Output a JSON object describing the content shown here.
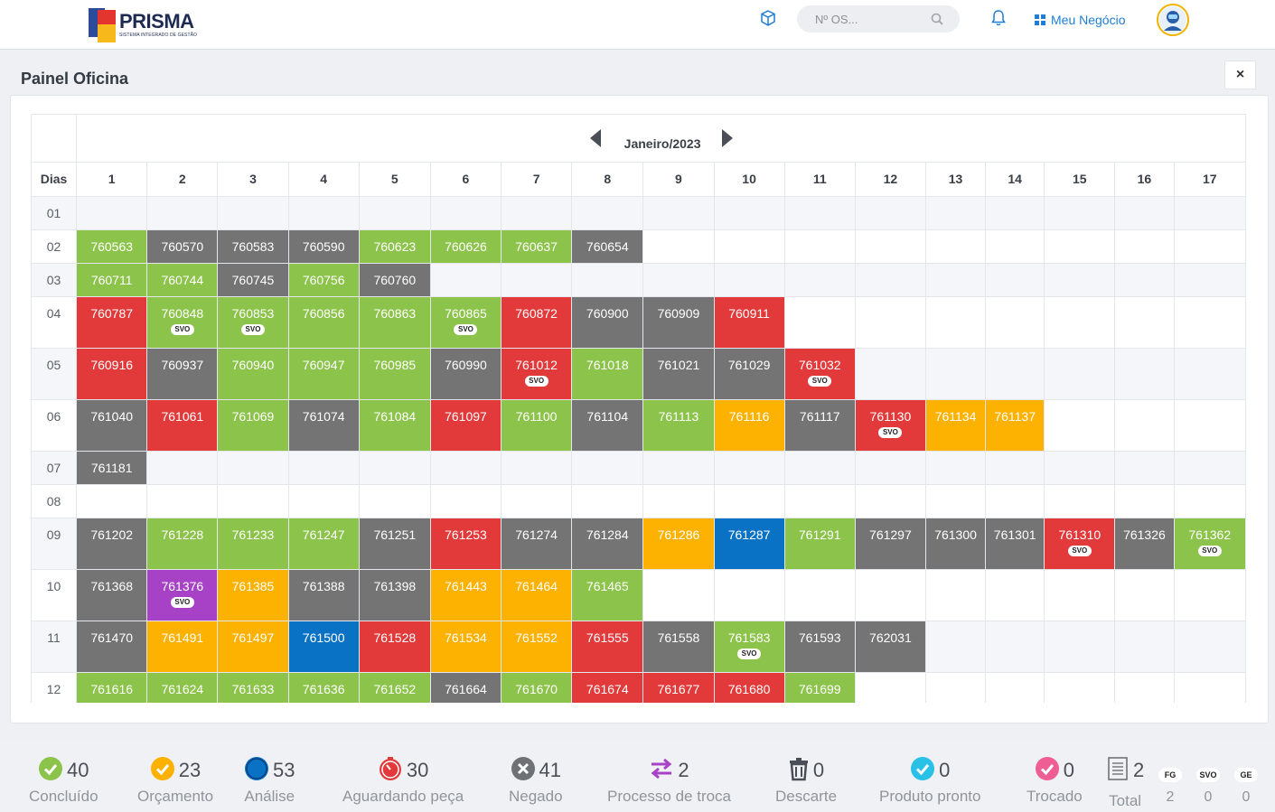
{
  "header": {
    "brand": "PRISMA",
    "tagline": "SISTEMA INTEGRADO DE GESTÃO",
    "search_placeholder": "Nº OS...",
    "business_link": "Meu Negócio",
    "accent_color": "#1f7dd6"
  },
  "panel": {
    "title": "Painel Oficina",
    "close_label": "×",
    "month_label": "Janeiro/2023",
    "days_header": "Dias",
    "columns": [
      "1",
      "2",
      "3",
      "4",
      "5",
      "6",
      "7",
      "8",
      "9",
      "10",
      "11",
      "12",
      "13",
      "14",
      "15",
      "16",
      "17"
    ]
  },
  "colors": {
    "green": "#8cc34a",
    "gray": "#747474",
    "red": "#e23a3a",
    "orange": "#fdb100",
    "blue": "#0a72c5",
    "purple": "#a742c6"
  },
  "rows": [
    {
      "day": "01",
      "cells": []
    },
    {
      "day": "02",
      "cells": [
        {
          "os": "760563",
          "c": "green"
        },
        {
          "os": "760570",
          "c": "gray"
        },
        {
          "os": "760583",
          "c": "gray"
        },
        {
          "os": "760590",
          "c": "gray"
        },
        {
          "os": "760623",
          "c": "green"
        },
        {
          "os": "760626",
          "c": "green"
        },
        {
          "os": "760637",
          "c": "green"
        },
        {
          "os": "760654",
          "c": "gray"
        }
      ]
    },
    {
      "day": "03",
      "cells": [
        {
          "os": "760711",
          "c": "green"
        },
        {
          "os": "760744",
          "c": "green"
        },
        {
          "os": "760745",
          "c": "gray"
        },
        {
          "os": "760756",
          "c": "green"
        },
        {
          "os": "760760",
          "c": "gray"
        }
      ]
    },
    {
      "day": "04",
      "cells": [
        {
          "os": "760787",
          "c": "red"
        },
        {
          "os": "760848",
          "c": "green",
          "svo": true
        },
        {
          "os": "760853",
          "c": "green",
          "svo": true
        },
        {
          "os": "760856",
          "c": "green"
        },
        {
          "os": "760863",
          "c": "green"
        },
        {
          "os": "760865",
          "c": "green",
          "svo": true
        },
        {
          "os": "760872",
          "c": "red"
        },
        {
          "os": "760900",
          "c": "gray"
        },
        {
          "os": "760909",
          "c": "gray"
        },
        {
          "os": "760911",
          "c": "red"
        }
      ]
    },
    {
      "day": "05",
      "cells": [
        {
          "os": "760916",
          "c": "red"
        },
        {
          "os": "760937",
          "c": "gray"
        },
        {
          "os": "760940",
          "c": "green"
        },
        {
          "os": "760947",
          "c": "green"
        },
        {
          "os": "760985",
          "c": "green"
        },
        {
          "os": "760990",
          "c": "gray"
        },
        {
          "os": "761012",
          "c": "red",
          "svo": true
        },
        {
          "os": "761018",
          "c": "green"
        },
        {
          "os": "761021",
          "c": "gray"
        },
        {
          "os": "761029",
          "c": "gray"
        },
        {
          "os": "761032",
          "c": "red",
          "svo": true
        }
      ]
    },
    {
      "day": "06",
      "cells": [
        {
          "os": "761040",
          "c": "gray"
        },
        {
          "os": "761061",
          "c": "red"
        },
        {
          "os": "761069",
          "c": "green"
        },
        {
          "os": "761074",
          "c": "gray"
        },
        {
          "os": "761084",
          "c": "green"
        },
        {
          "os": "761097",
          "c": "red"
        },
        {
          "os": "761100",
          "c": "green"
        },
        {
          "os": "761104",
          "c": "gray"
        },
        {
          "os": "761113",
          "c": "green"
        },
        {
          "os": "761116",
          "c": "orange"
        },
        {
          "os": "761117",
          "c": "gray"
        },
        {
          "os": "761130",
          "c": "red",
          "svo": true
        },
        {
          "os": "761134",
          "c": "orange"
        },
        {
          "os": "761137",
          "c": "orange"
        }
      ]
    },
    {
      "day": "07",
      "cells": [
        {
          "os": "761181",
          "c": "gray"
        }
      ]
    },
    {
      "day": "08",
      "cells": []
    },
    {
      "day": "09",
      "cells": [
        {
          "os": "761202",
          "c": "gray"
        },
        {
          "os": "761228",
          "c": "green"
        },
        {
          "os": "761233",
          "c": "green"
        },
        {
          "os": "761247",
          "c": "green"
        },
        {
          "os": "761251",
          "c": "gray"
        },
        {
          "os": "761253",
          "c": "red"
        },
        {
          "os": "761274",
          "c": "gray"
        },
        {
          "os": "761284",
          "c": "gray"
        },
        {
          "os": "761286",
          "c": "orange"
        },
        {
          "os": "761287",
          "c": "blue"
        },
        {
          "os": "761291",
          "c": "green"
        },
        {
          "os": "761297",
          "c": "gray"
        },
        {
          "os": "761300",
          "c": "gray"
        },
        {
          "os": "761301",
          "c": "gray"
        },
        {
          "os": "761310",
          "c": "red",
          "svo": true
        },
        {
          "os": "761326",
          "c": "gray"
        },
        {
          "os": "761362",
          "c": "green",
          "svo": true
        }
      ]
    },
    {
      "day": "10",
      "cells": [
        {
          "os": "761368",
          "c": "gray"
        },
        {
          "os": "761376",
          "c": "purple",
          "svo": true
        },
        {
          "os": "761385",
          "c": "orange"
        },
        {
          "os": "761388",
          "c": "gray"
        },
        {
          "os": "761398",
          "c": "gray"
        },
        {
          "os": "761443",
          "c": "orange"
        },
        {
          "os": "761464",
          "c": "orange"
        },
        {
          "os": "761465",
          "c": "green"
        }
      ]
    },
    {
      "day": "11",
      "cells": [
        {
          "os": "761470",
          "c": "gray"
        },
        {
          "os": "761491",
          "c": "orange"
        },
        {
          "os": "761497",
          "c": "orange"
        },
        {
          "os": "761500",
          "c": "blue"
        },
        {
          "os": "761528",
          "c": "red"
        },
        {
          "os": "761534",
          "c": "orange"
        },
        {
          "os": "761552",
          "c": "orange"
        },
        {
          "os": "761555",
          "c": "red"
        },
        {
          "os": "761558",
          "c": "gray"
        },
        {
          "os": "761583",
          "c": "green",
          "svo": true
        },
        {
          "os": "761593",
          "c": "gray"
        },
        {
          "os": "762031",
          "c": "gray"
        }
      ]
    },
    {
      "day": "12",
      "cells": [
        {
          "os": "761616",
          "c": "green"
        },
        {
          "os": "761624",
          "c": "green"
        },
        {
          "os": "761633",
          "c": "green"
        },
        {
          "os": "761636",
          "c": "green"
        },
        {
          "os": "761652",
          "c": "green"
        },
        {
          "os": "761664",
          "c": "gray"
        },
        {
          "os": "761670",
          "c": "green"
        },
        {
          "os": "761674",
          "c": "red"
        },
        {
          "os": "761677",
          "c": "red"
        },
        {
          "os": "761680",
          "c": "red"
        },
        {
          "os": "761699",
          "c": "green"
        }
      ]
    }
  ],
  "svo_label": "SVO",
  "stats": [
    {
      "label": "Concluído",
      "value": "40",
      "icon": "check-circle-icon",
      "color": "#8cc34a"
    },
    {
      "label": "Orçamento",
      "value": "23",
      "icon": "check-circle-icon",
      "color": "#fdb100"
    },
    {
      "label": "Análise",
      "value": "53",
      "icon": "dot-circle-icon",
      "color": "#0a72c5"
    },
    {
      "label": "Aguardando peça",
      "value": "30",
      "icon": "stopwatch-icon",
      "color": "#e23a3a"
    },
    {
      "label": "Negado",
      "value": "41",
      "icon": "x-circle-icon",
      "color": "#6e7276"
    },
    {
      "label": "Processo de troca",
      "value": "2",
      "icon": "exchange-icon",
      "color": "#a742c6"
    },
    {
      "label": "Descarte",
      "value": "0",
      "icon": "trash-icon",
      "color": "#4a4f57"
    },
    {
      "label": "Produto pronto",
      "value": "0",
      "icon": "check-circle-icon",
      "color": "#29c1e6"
    },
    {
      "label": "Trocado",
      "value": "0",
      "icon": "check-circle-icon",
      "color": "#ef5d95"
    },
    {
      "label": "Total",
      "value": "2",
      "icon": "document-icon",
      "color": "#6e7276"
    }
  ],
  "mini_stats": [
    {
      "label": "FG",
      "value": "2"
    },
    {
      "label": "SVO",
      "value": "0"
    },
    {
      "label": "GE",
      "value": "0"
    }
  ]
}
